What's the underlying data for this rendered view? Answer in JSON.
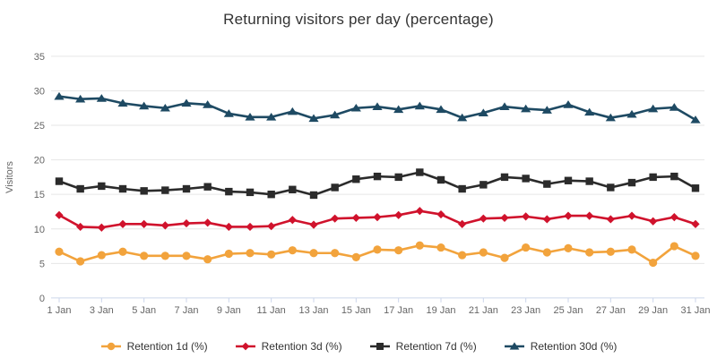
{
  "chart_data": {
    "type": "line",
    "title": "Returning visitors per day (percentage)",
    "xlabel": "",
    "ylabel": "Visitors",
    "ylim": [
      0,
      35
    ],
    "y_ticks": [
      0,
      5,
      10,
      15,
      20,
      25,
      30,
      35
    ],
    "grid": "horizontal-on",
    "legend_position": "bottom",
    "x_labels_every": 2,
    "categories": [
      "1 Jan",
      "2 Jan",
      "3 Jan",
      "4 Jan",
      "5 Jan",
      "6 Jan",
      "7 Jan",
      "8 Jan",
      "9 Jan",
      "10 Jan",
      "11 Jan",
      "12 Jan",
      "13 Jan",
      "14 Jan",
      "15 Jan",
      "16 Jan",
      "17 Jan",
      "18 Jan",
      "19 Jan",
      "20 Jan",
      "21 Jan",
      "22 Jan",
      "23 Jan",
      "24 Jan",
      "25 Jan",
      "26 Jan",
      "27 Jan",
      "28 Jan",
      "29 Jan",
      "30 Jan",
      "31 Jan"
    ],
    "series": [
      {
        "name": "Retention 1d (%)",
        "color": "#f2a33c",
        "marker": "circle",
        "values": [
          6.7,
          5.3,
          6.2,
          6.7,
          6.1,
          6.1,
          6.1,
          5.6,
          6.4,
          6.5,
          6.3,
          6.9,
          6.5,
          6.5,
          5.9,
          7.0,
          6.9,
          7.6,
          7.3,
          6.2,
          6.6,
          5.8,
          7.3,
          6.6,
          7.2,
          6.6,
          6.7,
          7.0,
          5.1,
          7.5,
          6.1
        ]
      },
      {
        "name": "Retention 3d (%)",
        "color": "#d0122c",
        "marker": "diamond",
        "values": [
          12.0,
          10.3,
          10.2,
          10.7,
          10.7,
          10.5,
          10.8,
          10.9,
          10.3,
          10.3,
          10.4,
          11.3,
          10.6,
          11.5,
          11.6,
          11.7,
          12.0,
          12.6,
          12.1,
          10.7,
          11.5,
          11.6,
          11.8,
          11.4,
          11.9,
          11.9,
          11.4,
          11.9,
          11.1,
          11.7,
          10.7
        ]
      },
      {
        "name": "Retention 7d (%)",
        "color": "#2b2b2b",
        "marker": "square",
        "values": [
          16.9,
          15.8,
          16.2,
          15.8,
          15.5,
          15.6,
          15.8,
          16.1,
          15.4,
          15.3,
          15.0,
          15.7,
          14.9,
          16.0,
          17.2,
          17.6,
          17.5,
          18.2,
          17.1,
          15.8,
          16.4,
          17.5,
          17.3,
          16.5,
          17.0,
          16.9,
          16.0,
          16.7,
          17.5,
          17.6,
          15.9
        ]
      },
      {
        "name": "Retention 30d (%)",
        "color": "#1e4a63",
        "marker": "triangle",
        "values": [
          29.2,
          28.8,
          28.9,
          28.2,
          27.8,
          27.5,
          28.2,
          28.0,
          26.7,
          26.2,
          26.2,
          27.0,
          26.0,
          26.5,
          27.5,
          27.7,
          27.3,
          27.8,
          27.3,
          26.1,
          26.8,
          27.7,
          27.4,
          27.2,
          28.0,
          26.9,
          26.1,
          26.6,
          27.4,
          27.6,
          25.8
        ]
      }
    ],
    "style": {
      "grid_color": "#e6e6e6",
      "axis_color": "#ccd6eb",
      "tick_label_color": "#666666",
      "title_color": "#333333",
      "legend_text_color": "#333333",
      "background": "#ffffff"
    }
  }
}
